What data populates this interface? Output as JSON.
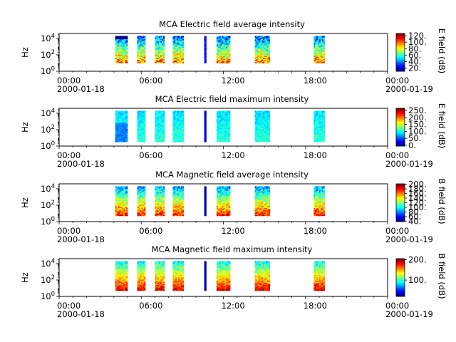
{
  "chart_data": [
    {
      "type": "heatmap",
      "title": "MCA  Electric field average intensity",
      "ylabel": "Hz",
      "cbar_label": "E field (dB)",
      "cbar_ticks": [
        "20.",
        "40.",
        "60.",
        "80.",
        "100.",
        "120."
      ],
      "cbar_tick_values": [
        20,
        40,
        60,
        80,
        100,
        120
      ],
      "cbar_range": [
        10,
        127
      ],
      "y_ticks": [
        {
          "base": "10",
          "exp": "0"
        },
        {
          "base": "10",
          "exp": "2"
        },
        {
          "base": "10",
          "exp": "4"
        }
      ],
      "y_tick_values": [
        0,
        2,
        4
      ],
      "y_range_log10": [
        0,
        4.6
      ],
      "x_tick_labels": [
        {
          "time": "00:00",
          "date": "2000-01-18"
        },
        {
          "time": "06:00",
          "date": ""
        },
        {
          "time": "12:00",
          "date": ""
        },
        {
          "time": "18:00",
          "date": ""
        },
        {
          "time": "00:00",
          "date": "2000-01-19"
        }
      ],
      "x_tick_hours": [
        0,
        6,
        12,
        18,
        24
      ],
      "x_range_hours": [
        0,
        24
      ],
      "segments_hours": [
        [
          4.1,
          5.0
        ],
        [
          5.7,
          6.3
        ],
        [
          7.0,
          7.7
        ],
        [
          8.3,
          9.1
        ],
        [
          10.6,
          10.75
        ],
        [
          11.5,
          12.5
        ],
        [
          14.3,
          15.4
        ],
        [
          18.6,
          19.4
        ]
      ],
      "freq_range_log10": [
        1,
        4.3
      ],
      "level_profile": "average-E"
    },
    {
      "type": "heatmap",
      "title": "MCA  Electric field maximum intensity",
      "ylabel": "Hz",
      "cbar_label": "E field (dB)",
      "cbar_ticks": [
        "0.",
        "50.",
        "100.",
        "150.",
        "200.",
        "250."
      ],
      "cbar_tick_values": [
        0,
        50,
        100,
        150,
        200,
        250
      ],
      "cbar_range": [
        -5,
        265
      ],
      "y_ticks": [
        {
          "base": "10",
          "exp": "0"
        },
        {
          "base": "10",
          "exp": "2"
        },
        {
          "base": "10",
          "exp": "4"
        }
      ],
      "y_tick_values": [
        0,
        2,
        4
      ],
      "y_range_log10": [
        0,
        4.6
      ],
      "x_tick_labels": [
        {
          "time": "00:00",
          "date": "2000-01-18"
        },
        {
          "time": "06:00",
          "date": ""
        },
        {
          "time": "12:00",
          "date": ""
        },
        {
          "time": "18:00",
          "date": ""
        },
        {
          "time": "00:00",
          "date": "2000-01-19"
        }
      ],
      "x_tick_hours": [
        0,
        6,
        12,
        18,
        24
      ],
      "x_range_hours": [
        0,
        24
      ],
      "segments_hours": [
        [
          4.1,
          5.0
        ],
        [
          5.7,
          6.3
        ],
        [
          7.0,
          7.7
        ],
        [
          8.3,
          9.1
        ],
        [
          10.6,
          10.75
        ],
        [
          11.5,
          12.5
        ],
        [
          14.3,
          15.4
        ],
        [
          18.6,
          19.4
        ]
      ],
      "freq_range_log10": [
        0.5,
        4.3
      ],
      "level_profile": "maximum-E"
    },
    {
      "type": "heatmap",
      "title": "MCA  Magnetic field average intensity",
      "ylabel": "Hz",
      "cbar_label": "B field (dB)",
      "cbar_ticks": [
        "40.",
        "60.",
        "80.",
        "100.",
        "120.",
        "140.",
        "160.",
        "180.",
        "200."
      ],
      "cbar_tick_values": [
        40,
        60,
        80,
        100,
        120,
        140,
        160,
        180,
        200
      ],
      "cbar_range": [
        38,
        202
      ],
      "y_ticks": [
        {
          "base": "10",
          "exp": "0"
        },
        {
          "base": "10",
          "exp": "2"
        },
        {
          "base": "10",
          "exp": "4"
        }
      ],
      "y_tick_values": [
        0,
        2,
        4
      ],
      "y_range_log10": [
        0,
        4.6
      ],
      "x_tick_labels": [
        {
          "time": "00:00",
          "date": "2000-01-18"
        },
        {
          "time": "06:00",
          "date": ""
        },
        {
          "time": "12:00",
          "date": ""
        },
        {
          "time": "18:00",
          "date": ""
        },
        {
          "time": "00:00",
          "date": "2000-01-19"
        }
      ],
      "x_tick_hours": [
        0,
        6,
        12,
        18,
        24
      ],
      "x_range_hours": [
        0,
        24
      ],
      "segments_hours": [
        [
          4.1,
          5.0
        ],
        [
          5.7,
          6.3
        ],
        [
          7.0,
          7.7
        ],
        [
          8.3,
          9.1
        ],
        [
          10.6,
          10.75
        ],
        [
          11.5,
          12.5
        ],
        [
          14.3,
          15.4
        ],
        [
          18.6,
          19.4
        ]
      ],
      "freq_range_log10": [
        0.7,
        4.3
      ],
      "level_profile": "average-B"
    },
    {
      "type": "heatmap",
      "title": "MCA  Magnetic field maximum intensity",
      "ylabel": "Hz",
      "cbar_label": "B field (dB)",
      "cbar_ticks": [
        "100.",
        "200."
      ],
      "cbar_tick_values": [
        100,
        200
      ],
      "cbar_range": [
        20,
        205
      ],
      "y_ticks": [
        {
          "base": "10",
          "exp": "0"
        },
        {
          "base": "10",
          "exp": "2"
        },
        {
          "base": "10",
          "exp": "4"
        }
      ],
      "y_tick_values": [
        0,
        2,
        4
      ],
      "y_range_log10": [
        0,
        4.6
      ],
      "x_tick_labels": [
        {
          "time": "00:00",
          "date": "2000-01-18"
        },
        {
          "time": "06:00",
          "date": ""
        },
        {
          "time": "12:00",
          "date": ""
        },
        {
          "time": "18:00",
          "date": ""
        },
        {
          "time": "00:00",
          "date": "2000-01-19"
        }
      ],
      "x_tick_hours": [
        0,
        6,
        12,
        18,
        24
      ],
      "x_range_hours": [
        0,
        24
      ],
      "segments_hours": [
        [
          4.1,
          5.0
        ],
        [
          5.7,
          6.3
        ],
        [
          7.0,
          7.7
        ],
        [
          8.3,
          9.1
        ],
        [
          10.6,
          10.75
        ],
        [
          11.5,
          12.5
        ],
        [
          14.3,
          15.4
        ],
        [
          18.6,
          19.4
        ]
      ],
      "freq_range_log10": [
        0.7,
        4.3
      ],
      "level_profile": "maximum-B"
    }
  ]
}
